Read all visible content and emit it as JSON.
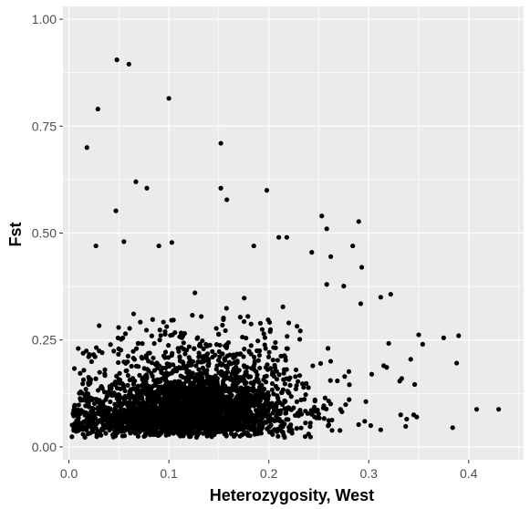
{
  "chart_data": {
    "type": "scatter",
    "title": "",
    "xlabel": "Heterozygosity, West",
    "ylabel": "Fst",
    "xlim": [
      -0.006,
      0.455
    ],
    "ylim": [
      -0.03,
      1.03
    ],
    "x_ticks": [
      0.0,
      0.1,
      0.2,
      0.3,
      0.4
    ],
    "x_tick_labels": [
      "0.0",
      "0.1",
      "0.2",
      "0.3",
      "0.4"
    ],
    "y_ticks": [
      0.0,
      0.25,
      0.5,
      0.75,
      1.0
    ],
    "y_tick_labels": [
      "0.00",
      "0.25",
      "0.50",
      "0.75",
      "1.00"
    ],
    "grid": true,
    "panel_background": "#ebebeb",
    "grid_color": "#ffffff",
    "point_color": "#000000",
    "outlier_points": [
      [
        0.048,
        0.905
      ],
      [
        0.06,
        0.895
      ],
      [
        0.029,
        0.79
      ],
      [
        0.1,
        0.815
      ],
      [
        0.018,
        0.7
      ],
      [
        0.152,
        0.71
      ],
      [
        0.067,
        0.62
      ],
      [
        0.078,
        0.605
      ],
      [
        0.152,
        0.605
      ],
      [
        0.198,
        0.6
      ],
      [
        0.158,
        0.578
      ],
      [
        0.047,
        0.552
      ],
      [
        0.253,
        0.54
      ],
      [
        0.29,
        0.527
      ],
      [
        0.258,
        0.51
      ],
      [
        0.21,
        0.49
      ],
      [
        0.218,
        0.49
      ],
      [
        0.055,
        0.48
      ],
      [
        0.027,
        0.47
      ],
      [
        0.103,
        0.478
      ],
      [
        0.09,
        0.47
      ],
      [
        0.185,
        0.47
      ],
      [
        0.243,
        0.455
      ],
      [
        0.284,
        0.47
      ],
      [
        0.262,
        0.445
      ],
      [
        0.293,
        0.42
      ],
      [
        0.258,
        0.38
      ],
      [
        0.275,
        0.376
      ],
      [
        0.322,
        0.357
      ],
      [
        0.312,
        0.35
      ],
      [
        0.292,
        0.335
      ],
      [
        0.35,
        0.262
      ],
      [
        0.39,
        0.26
      ],
      [
        0.375,
        0.255
      ],
      [
        0.354,
        0.24
      ],
      [
        0.32,
        0.242
      ],
      [
        0.342,
        0.205
      ],
      [
        0.388,
        0.196
      ],
      [
        0.315,
        0.19
      ],
      [
        0.318,
        0.186
      ],
      [
        0.303,
        0.17
      ],
      [
        0.331,
        0.154
      ],
      [
        0.346,
        0.146
      ],
      [
        0.333,
        0.16
      ],
      [
        0.408,
        0.088
      ],
      [
        0.43,
        0.088
      ],
      [
        0.332,
        0.075
      ],
      [
        0.345,
        0.075
      ],
      [
        0.338,
        0.065
      ],
      [
        0.348,
        0.07
      ],
      [
        0.337,
        0.048
      ],
      [
        0.312,
        0.04
      ],
      [
        0.384,
        0.045
      ],
      [
        0.302,
        0.05
      ],
      [
        0.296,
        0.06
      ]
    ],
    "cluster": {
      "description_of_bulk": "dense cloud of roughly 3000 loci",
      "n_points": 3000,
      "x_range": [
        0.0,
        0.3
      ],
      "y_range": [
        0.0,
        0.45
      ],
      "densest_region": {
        "x": 0.12,
        "y": 0.08
      }
    }
  }
}
